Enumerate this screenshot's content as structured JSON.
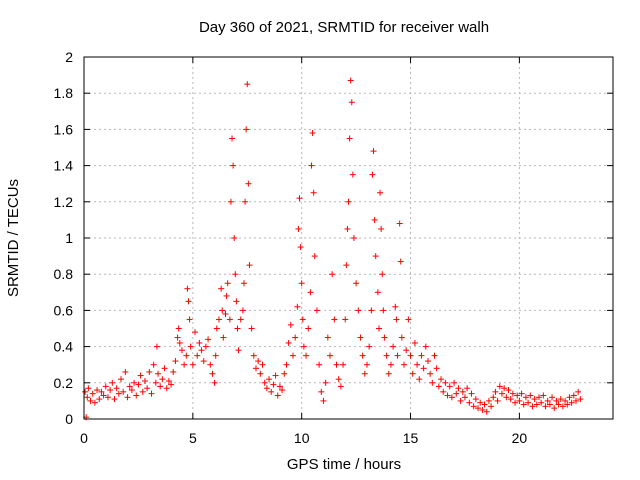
{
  "chart_data": {
    "type": "scatter",
    "title": "Day 360 of 2021, SRMTID for receiver walh",
    "xlabel": "GPS time / hours",
    "ylabel": "SRMTID / TECUs",
    "xlim": [
      0,
      24.3
    ],
    "ylim": [
      0,
      2
    ],
    "xticks": [
      0,
      5,
      10,
      15,
      20
    ],
    "xtick_labels": [
      "0",
      "5",
      "10",
      "15",
      "20"
    ],
    "yticks": [
      0,
      0.2,
      0.4,
      0.6,
      0.8,
      1,
      1.2,
      1.4,
      1.6,
      1.8,
      2
    ],
    "ytick_labels": [
      "0",
      "0.2",
      "0.4",
      "0.6",
      "0.8",
      "1",
      "1.2",
      "1.4",
      "1.6",
      "1.8",
      "2"
    ],
    "grid": true,
    "marker": "+",
    "marker_color": "#ff0000",
    "series": [
      {
        "name": "SRMTID",
        "points": [
          [
            0.05,
            0.15
          ],
          [
            0.1,
            0.01
          ],
          [
            0.15,
            0.12
          ],
          [
            0.2,
            0.17
          ],
          [
            0.3,
            0.1
          ],
          [
            0.4,
            0.14
          ],
          [
            0.5,
            0.09
          ],
          [
            0.6,
            0.16
          ],
          [
            0.7,
            0.11
          ],
          [
            0.8,
            0.15
          ],
          [
            0.9,
            0.13
          ],
          [
            1.0,
            0.18
          ],
          [
            1.1,
            0.12
          ],
          [
            1.2,
            0.16
          ],
          [
            1.3,
            0.2
          ],
          [
            1.4,
            0.11
          ],
          [
            1.5,
            0.17
          ],
          [
            1.6,
            0.14
          ],
          [
            1.7,
            0.22
          ],
          [
            1.8,
            0.15
          ],
          [
            1.9,
            0.26
          ],
          [
            2.0,
            0.12
          ],
          [
            2.1,
            0.18
          ],
          [
            2.2,
            0.16
          ],
          [
            2.3,
            0.2
          ],
          [
            2.4,
            0.13
          ],
          [
            2.5,
            0.19
          ],
          [
            2.6,
            0.24
          ],
          [
            2.7,
            0.15
          ],
          [
            2.8,
            0.21
          ],
          [
            2.9,
            0.17
          ],
          [
            3.0,
            0.26
          ],
          [
            3.1,
            0.14
          ],
          [
            3.2,
            0.3
          ],
          [
            3.3,
            0.2
          ],
          [
            3.35,
            0.4
          ],
          [
            3.4,
            0.25
          ],
          [
            3.5,
            0.18
          ],
          [
            3.6,
            0.22
          ],
          [
            3.7,
            0.28
          ],
          [
            3.8,
            0.17
          ],
          [
            3.9,
            0.21
          ],
          [
            4.0,
            0.19
          ],
          [
            4.1,
            0.26
          ],
          [
            4.2,
            0.32
          ],
          [
            4.3,
            0.45
          ],
          [
            4.35,
            0.5
          ],
          [
            4.4,
            0.42
          ],
          [
            4.5,
            0.38
          ],
          [
            4.6,
            0.3
          ],
          [
            4.7,
            0.35
          ],
          [
            4.75,
            0.72
          ],
          [
            4.8,
            0.65
          ],
          [
            4.85,
            0.55
          ],
          [
            4.9,
            0.4
          ],
          [
            5.0,
            0.3
          ],
          [
            5.1,
            0.48
          ],
          [
            5.2,
            0.35
          ],
          [
            5.3,
            0.42
          ],
          [
            5.4,
            0.38
          ],
          [
            5.5,
            0.32
          ],
          [
            5.6,
            0.4
          ],
          [
            5.7,
            0.44
          ],
          [
            5.8,
            0.3
          ],
          [
            5.9,
            0.25
          ],
          [
            6.0,
            0.2
          ],
          [
            6.05,
            0.35
          ],
          [
            6.1,
            0.5
          ],
          [
            6.2,
            0.55
          ],
          [
            6.3,
            0.72
          ],
          [
            6.35,
            0.6
          ],
          [
            6.4,
            0.45
          ],
          [
            6.5,
            0.58
          ],
          [
            6.55,
            0.68
          ],
          [
            6.6,
            0.75
          ],
          [
            6.7,
            0.55
          ],
          [
            6.75,
            1.2
          ],
          [
            6.8,
            1.55
          ],
          [
            6.85,
            1.4
          ],
          [
            6.9,
            1.0
          ],
          [
            6.95,
            0.8
          ],
          [
            7.0,
            0.65
          ],
          [
            7.05,
            0.5
          ],
          [
            7.1,
            0.38
          ],
          [
            7.2,
            0.55
          ],
          [
            7.3,
            0.6
          ],
          [
            7.35,
            0.75
          ],
          [
            7.4,
            1.2
          ],
          [
            7.45,
            1.6
          ],
          [
            7.5,
            1.85
          ],
          [
            7.55,
            1.3
          ],
          [
            7.6,
            0.85
          ],
          [
            7.7,
            0.5
          ],
          [
            7.8,
            0.35
          ],
          [
            7.9,
            0.28
          ],
          [
            8.0,
            0.32
          ],
          [
            8.1,
            0.25
          ],
          [
            8.2,
            0.3
          ],
          [
            8.3,
            0.2
          ],
          [
            8.4,
            0.17
          ],
          [
            8.5,
            0.22
          ],
          [
            8.6,
            0.15
          ],
          [
            8.7,
            0.19
          ],
          [
            8.8,
            0.24
          ],
          [
            8.9,
            0.13
          ],
          [
            9.0,
            0.18
          ],
          [
            9.1,
            0.16
          ],
          [
            9.2,
            0.25
          ],
          [
            9.3,
            0.3
          ],
          [
            9.4,
            0.42
          ],
          [
            9.5,
            0.52
          ],
          [
            9.6,
            0.35
          ],
          [
            9.7,
            0.45
          ],
          [
            9.8,
            0.62
          ],
          [
            9.85,
            1.05
          ],
          [
            9.9,
            1.22
          ],
          [
            9.95,
            0.95
          ],
          [
            10.0,
            0.75
          ],
          [
            10.05,
            0.55
          ],
          [
            10.1,
            0.4
          ],
          [
            10.2,
            0.35
          ],
          [
            10.3,
            0.5
          ],
          [
            10.4,
            0.7
          ],
          [
            10.45,
            1.4
          ],
          [
            10.5,
            1.58
          ],
          [
            10.55,
            1.25
          ],
          [
            10.6,
            0.9
          ],
          [
            10.7,
            0.6
          ],
          [
            10.8,
            0.3
          ],
          [
            10.9,
            0.15
          ],
          [
            11.0,
            0.1
          ],
          [
            11.1,
            0.2
          ],
          [
            11.2,
            0.45
          ],
          [
            11.3,
            0.35
          ],
          [
            11.4,
            0.8
          ],
          [
            11.5,
            0.55
          ],
          [
            11.6,
            0.3
          ],
          [
            11.7,
            0.22
          ],
          [
            11.8,
            0.18
          ],
          [
            11.9,
            0.3
          ],
          [
            12.0,
            0.55
          ],
          [
            12.05,
            0.85
          ],
          [
            12.1,
            1.05
          ],
          [
            12.15,
            1.2
          ],
          [
            12.2,
            1.55
          ],
          [
            12.25,
            1.87
          ],
          [
            12.3,
            1.75
          ],
          [
            12.35,
            1.35
          ],
          [
            12.4,
            1.0
          ],
          [
            12.5,
            0.75
          ],
          [
            12.6,
            0.6
          ],
          [
            12.7,
            0.45
          ],
          [
            12.8,
            0.35
          ],
          [
            12.9,
            0.25
          ],
          [
            13.0,
            0.3
          ],
          [
            13.1,
            0.4
          ],
          [
            13.2,
            0.6
          ],
          [
            13.25,
            1.35
          ],
          [
            13.3,
            1.48
          ],
          [
            13.35,
            1.1
          ],
          [
            13.4,
            0.9
          ],
          [
            13.5,
            0.7
          ],
          [
            13.55,
            0.5
          ],
          [
            13.6,
            1.25
          ],
          [
            13.65,
            1.05
          ],
          [
            13.7,
            0.8
          ],
          [
            13.75,
            0.6
          ],
          [
            13.8,
            0.45
          ],
          [
            13.9,
            0.35
          ],
          [
            14.0,
            0.25
          ],
          [
            14.1,
            0.3
          ],
          [
            14.2,
            0.4
          ],
          [
            14.3,
            0.62
          ],
          [
            14.35,
            0.55
          ],
          [
            14.4,
            0.35
          ],
          [
            14.5,
            1.08
          ],
          [
            14.55,
            0.87
          ],
          [
            14.6,
            0.45
          ],
          [
            14.7,
            0.3
          ],
          [
            14.8,
            0.38
          ],
          [
            14.9,
            0.55
          ],
          [
            15.0,
            0.35
          ],
          [
            15.1,
            0.25
          ],
          [
            15.2,
            0.42
          ],
          [
            15.3,
            0.3
          ],
          [
            15.4,
            0.22
          ],
          [
            15.5,
            0.35
          ],
          [
            15.6,
            0.28
          ],
          [
            15.7,
            0.4
          ],
          [
            15.8,
            0.32
          ],
          [
            15.9,
            0.25
          ],
          [
            16.0,
            0.2
          ],
          [
            16.1,
            0.35
          ],
          [
            16.2,
            0.28
          ],
          [
            16.3,
            0.18
          ],
          [
            16.4,
            0.22
          ],
          [
            16.5,
            0.15
          ],
          [
            16.6,
            0.2
          ],
          [
            16.7,
            0.13
          ],
          [
            16.8,
            0.18
          ],
          [
            16.9,
            0.12
          ],
          [
            17.0,
            0.2
          ],
          [
            17.1,
            0.14
          ],
          [
            17.2,
            0.17
          ],
          [
            17.3,
            0.1
          ],
          [
            17.4,
            0.15
          ],
          [
            17.5,
            0.12
          ],
          [
            17.6,
            0.17
          ],
          [
            17.7,
            0.09
          ],
          [
            17.8,
            0.14
          ],
          [
            17.9,
            0.07
          ],
          [
            18.0,
            0.11
          ],
          [
            18.1,
            0.06
          ],
          [
            18.2,
            0.09
          ],
          [
            18.3,
            0.05
          ],
          [
            18.4,
            0.08
          ],
          [
            18.5,
            0.04
          ],
          [
            18.6,
            0.1
          ],
          [
            18.7,
            0.07
          ],
          [
            18.8,
            0.12
          ],
          [
            18.9,
            0.15
          ],
          [
            19.0,
            0.1
          ],
          [
            19.1,
            0.18
          ],
          [
            19.2,
            0.14
          ],
          [
            19.3,
            0.17
          ],
          [
            19.4,
            0.12
          ],
          [
            19.5,
            0.16
          ],
          [
            19.6,
            0.11
          ],
          [
            19.7,
            0.14
          ],
          [
            19.8,
            0.09
          ],
          [
            19.9,
            0.13
          ],
          [
            20.0,
            0.1
          ],
          [
            20.1,
            0.14
          ],
          [
            20.2,
            0.08
          ],
          [
            20.3,
            0.12
          ],
          [
            20.4,
            0.09
          ],
          [
            20.5,
            0.13
          ],
          [
            20.6,
            0.07
          ],
          [
            20.7,
            0.11
          ],
          [
            20.8,
            0.08
          ],
          [
            20.9,
            0.12
          ],
          [
            21.0,
            0.09
          ],
          [
            21.1,
            0.13
          ],
          [
            21.2,
            0.07
          ],
          [
            21.3,
            0.1
          ],
          [
            21.4,
            0.08
          ],
          [
            21.5,
            0.12
          ],
          [
            21.6,
            0.06
          ],
          [
            21.7,
            0.1
          ],
          [
            21.8,
            0.08
          ],
          [
            21.9,
            0.11
          ],
          [
            22.0,
            0.07
          ],
          [
            22.1,
            0.1
          ],
          [
            22.2,
            0.08
          ],
          [
            22.3,
            0.12
          ],
          [
            22.4,
            0.09
          ],
          [
            22.5,
            0.13
          ],
          [
            22.6,
            0.1
          ],
          [
            22.7,
            0.15
          ],
          [
            22.8,
            0.11
          ]
        ]
      }
    ]
  }
}
